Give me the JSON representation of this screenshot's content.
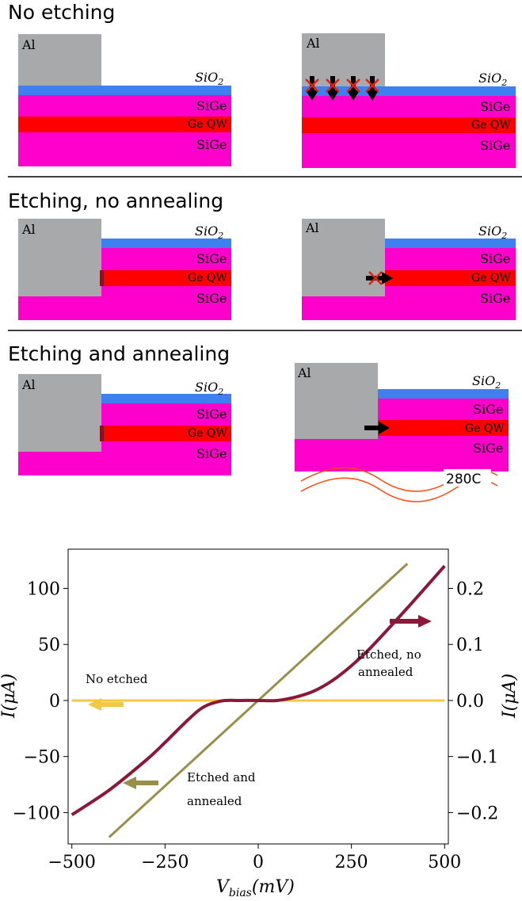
{
  "sections": [
    {
      "title": "No etching"
    },
    {
      "title": "Etching, no annealing"
    },
    {
      "title": "Etching and annealing"
    }
  ],
  "layers": {
    "al": "Al",
    "oxide_base": "SiO",
    "oxide_sub": "2",
    "barrier": "SiGe",
    "well": "Ge QW"
  },
  "anneal_temperature": "280C",
  "colors": {
    "al": "#a7a9ab",
    "oxide": "#3f7ff0",
    "barrier": "#ff00cc",
    "well": "#ff0000",
    "no_etched_curve": "#f5c842",
    "etched_annealed_curve": "#9a8f4a",
    "etched_not_annealed_curve": "#8b1838"
  },
  "chart_data": {
    "type": "line",
    "xlabel_base": "V",
    "xlabel_sub": "bias",
    "xlabel_rest": "(mV)",
    "ylabel_left": "I(μA)",
    "ylabel_right": "I(μA)",
    "xlim": [
      -510,
      510
    ],
    "ylim_left": [
      -128,
      135
    ],
    "ylim_right": [
      -0.256,
      0.27
    ],
    "xticks": [
      -500,
      -250,
      0,
      250,
      500
    ],
    "xtick_labels": [
      "−500",
      "−250",
      "0",
      "250",
      "500"
    ],
    "yticks_left": [
      -100,
      -50,
      0,
      50,
      100
    ],
    "ytick_labels_left": [
      "−100",
      "−50",
      "0",
      "50",
      "100"
    ],
    "yticks_right": [
      -0.2,
      -0.1,
      0.0,
      0.1,
      0.2
    ],
    "ytick_labels_right": [
      "−0.2",
      "−0.1",
      "0.0",
      "0.1",
      "0.2"
    ],
    "grid": false,
    "series": [
      {
        "label": "No etched",
        "axis": "left",
        "x": [
          -500,
          500
        ],
        "y": [
          0,
          0
        ]
      },
      {
        "label": "Etched and annealed",
        "axis": "left",
        "x": [
          -400,
          400
        ],
        "y": [
          -122,
          122
        ]
      },
      {
        "label": "Etched, no annealed",
        "axis": "right",
        "x": [
          -500,
          -400,
          -300,
          -250,
          -200,
          -150,
          -100,
          -50,
          0,
          50,
          100,
          150,
          200,
          250,
          300,
          400,
          500
        ],
        "y": [
          -0.204,
          -0.16,
          -0.106,
          -0.075,
          -0.042,
          -0.013,
          -0.001,
          0.0,
          0.0,
          0.0,
          0.006,
          0.017,
          0.036,
          0.062,
          0.093,
          0.165,
          0.24
        ]
      }
    ],
    "annotations": [
      {
        "text": "No etched"
      },
      {
        "text": "Etched, no"
      },
      {
        "text": "annealed"
      },
      {
        "text": "Etched and"
      },
      {
        "text": "annealed"
      }
    ]
  }
}
